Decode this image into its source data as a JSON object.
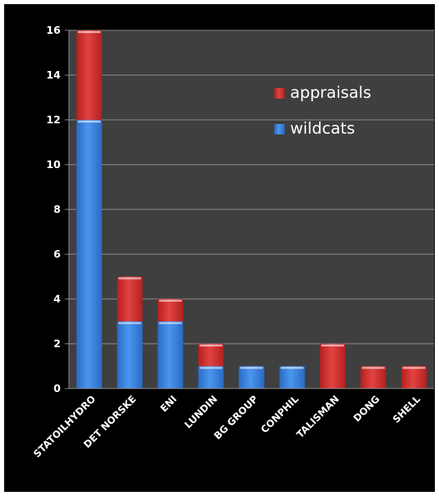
{
  "chart_data": {
    "type": "bar",
    "stacked": true,
    "categories": [
      "STATOILHYDRO",
      "DET NORSKE",
      "ENI",
      "LUNDIN",
      "BG GROUP",
      "CONPHIL",
      "TALISMAN",
      "DONG",
      "SHELL"
    ],
    "series": [
      {
        "name": "wildcats",
        "values": [
          12,
          3,
          3,
          1,
          1,
          1,
          0,
          0,
          0
        ],
        "color": "#3b86e0"
      },
      {
        "name": "appraisals",
        "values": [
          4,
          2,
          1,
          1,
          0,
          0,
          2,
          1,
          1
        ],
        "color": "#d7302f"
      }
    ],
    "yticks": [
      "0",
      "2",
      "4",
      "6",
      "8",
      "10",
      "12",
      "14",
      "16"
    ],
    "ylim": [
      0,
      16
    ],
    "grid": true,
    "legend_position": "top-right",
    "title": "",
    "xlabel": "",
    "ylabel": ""
  },
  "colors": {
    "background": "#000000",
    "plot_area": "#3f3f3f",
    "grid": "#9a9a9a",
    "text": "#ffffff"
  }
}
